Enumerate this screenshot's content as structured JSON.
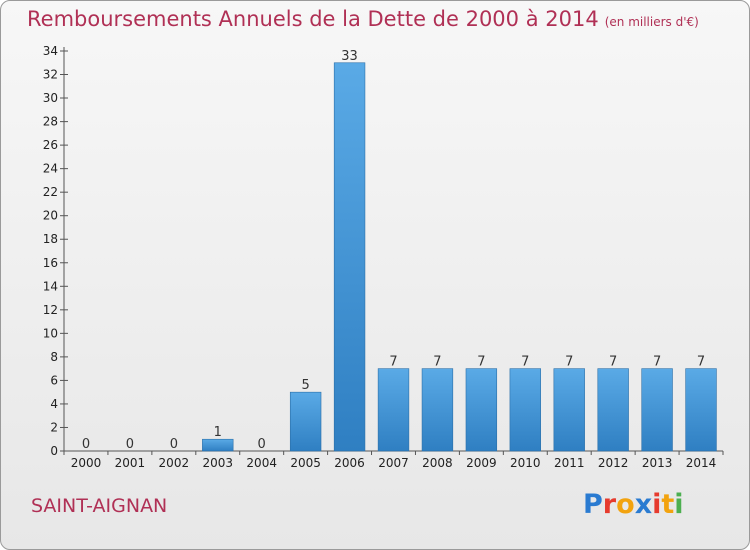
{
  "header": {
    "title": "Remboursements Annuels de la Dette de 2000 à 2014",
    "subtitle": "(en milliers d'€)"
  },
  "footer": {
    "commune": "SAINT-AIGNAN",
    "logo_letters": [
      "P",
      "r",
      "o",
      "x",
      "i",
      "t",
      "i"
    ],
    "logo_colors": [
      "#2a7bd1",
      "#e63b2e",
      "#f2a30f",
      "#2a7bd1",
      "#e63b2e",
      "#f2a30f",
      "#4caf50"
    ]
  },
  "chart_data": {
    "type": "bar",
    "title": "Remboursements Annuels de la Dette de 2000 à 2014",
    "xlabel": "",
    "ylabel": "",
    "categories": [
      "2000",
      "2001",
      "2002",
      "2003",
      "2004",
      "2005",
      "2006",
      "2007",
      "2008",
      "2009",
      "2010",
      "2011",
      "2012",
      "2013",
      "2014"
    ],
    "values": [
      0,
      0,
      0,
      1,
      0,
      5,
      33,
      7,
      7,
      7,
      7,
      7,
      7,
      7,
      7
    ],
    "ylim": [
      0,
      34
    ],
    "yticks": [
      0,
      2,
      4,
      6,
      8,
      10,
      12,
      14,
      16,
      18,
      20,
      22,
      24,
      26,
      28,
      30,
      32,
      34
    ],
    "bar_color_light": "#5aaae6",
    "bar_color_dark": "#2f7fc2",
    "grid": false
  }
}
